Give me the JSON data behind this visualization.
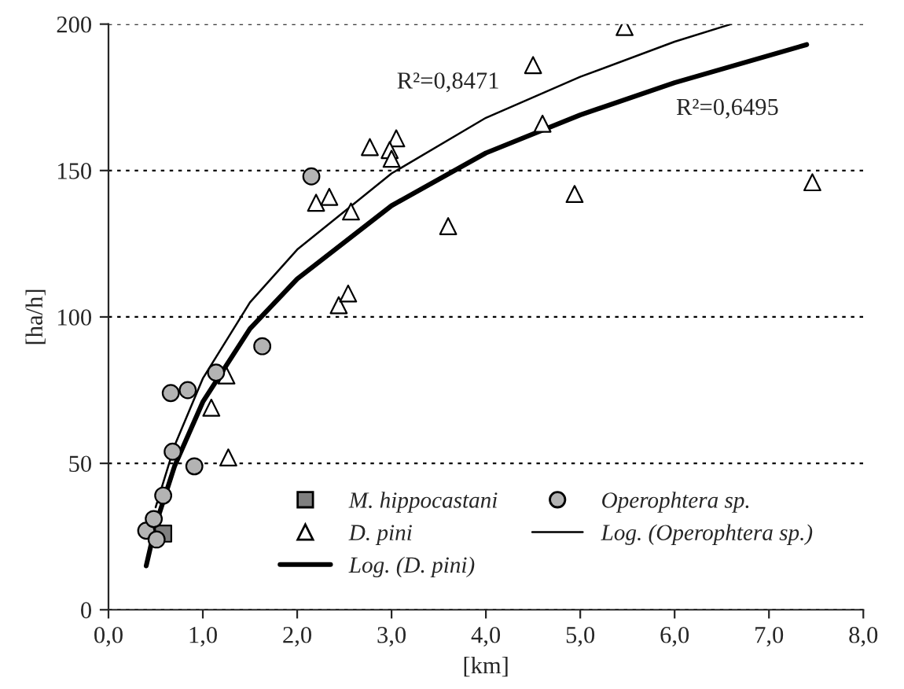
{
  "chart_data": {
    "type": "scatter",
    "xlabel": "[km]",
    "ylabel": "[ha/h]",
    "xlim": [
      0,
      8
    ],
    "ylim": [
      0,
      200
    ],
    "xticks": [
      {
        "value": 0,
        "label": "0,0"
      },
      {
        "value": 1,
        "label": "1,0"
      },
      {
        "value": 2,
        "label": "2,0"
      },
      {
        "value": 3,
        "label": "3,0"
      },
      {
        "value": 4,
        "label": "4,0"
      },
      {
        "value": 5,
        "label": "5,0"
      },
      {
        "value": 6,
        "label": "6,0"
      },
      {
        "value": 7,
        "label": "7,0"
      },
      {
        "value": 8,
        "label": "8,0"
      }
    ],
    "yticks": [
      0,
      50,
      100,
      150,
      200
    ],
    "grid": "y",
    "legend": "bottom right",
    "series": [
      {
        "name": "M. hippocastani",
        "marker": "square",
        "color": "#7f7f7f",
        "x": [
          0.58
        ],
        "values": [
          26
        ]
      },
      {
        "name": "D. pini",
        "marker": "triangle",
        "color": "#ffffff",
        "x": [
          1.25,
          1.09,
          1.27,
          4.5,
          2.77,
          3.05,
          2.98,
          3.0,
          2.2,
          2.34,
          2.57,
          4.6,
          3.6,
          4.94,
          2.44,
          2.54,
          5.47,
          7.46
        ],
        "values": [
          80,
          69,
          52,
          186,
          158,
          161,
          157,
          154,
          139,
          141,
          136,
          166,
          131,
          142,
          104,
          108,
          199,
          146
        ]
      },
      {
        "name": "Log. (D. pini)",
        "type": "line",
        "marker": "none",
        "line_style": "solid",
        "color": "#000000",
        "x": [
          0.4,
          0.5,
          0.7,
          1,
          1.5,
          2,
          3,
          4,
          5,
          6,
          7.4
        ],
        "values": [
          15,
          29,
          49,
          71,
          96,
          113,
          138,
          156,
          169,
          180,
          193
        ]
      },
      {
        "name": "Operophtera sp.",
        "marker": "circle",
        "color": "#b3b3b3",
        "x": [
          0.4,
          0.48,
          0.51,
          0.58,
          0.66,
          0.84,
          0.68,
          0.91,
          1.14,
          1.63,
          2.15
        ],
        "values": [
          27,
          31,
          24,
          39,
          74,
          75,
          54,
          49,
          81,
          90,
          148
        ]
      },
      {
        "name": "Log. (Operophtera sp.)",
        "type": "line",
        "marker": "none",
        "line_style": "solid",
        "color": "#000000",
        "x": [
          0.5,
          0.7,
          1,
          1.5,
          2,
          3,
          4,
          5,
          6,
          6.6
        ],
        "values": [
          35,
          56,
          79,
          105,
          123,
          149,
          168,
          182,
          194,
          200
        ]
      }
    ],
    "annotations": [
      "R²=0,8471",
      "R²=0,6495"
    ]
  }
}
